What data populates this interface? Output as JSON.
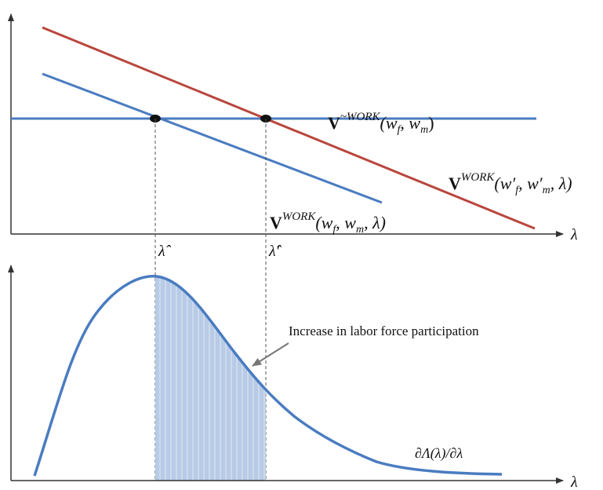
{
  "colors": {
    "blue": "#4a7cc0",
    "red": "#b9463d",
    "shade": "#b8cbe6",
    "axis": "#333333"
  },
  "top_panel": {
    "x_axis_label": "λ",
    "lines": [
      {
        "name": "V^~WORK(w_f, w_m)",
        "color": "blue"
      },
      {
        "name": "V^WORK(w_f, w_m, λ)",
        "color": "blue"
      },
      {
        "name": "V^WORK(w'_f, w'_m, λ)",
        "color": "red"
      }
    ],
    "tick_labels": {
      "lambda_hat": "λ̂",
      "lambda_hat_prime": "λ̂′"
    }
  },
  "bottom_panel": {
    "x_axis_label": "λ",
    "density_label": "∂Λ(λ)/∂λ",
    "annotation": "Increase in labor force participation"
  },
  "labels": {
    "v_nowork": {
      "V": "V",
      "sup": "~WORK",
      "args": "(w",
      "f": "f",
      "comma": ", w",
      "m": "m",
      "close": ")"
    },
    "v_work": {
      "V": "V",
      "sup": "WORK",
      "args": "(w",
      "f": "f",
      "comma": ", w",
      "m": "m",
      "tail": ", λ)"
    },
    "v_work_prime": {
      "V": "V",
      "sup": "WORK",
      "args": "(w′",
      "f": "f",
      "comma": ", w′",
      "m": "m",
      "tail": ", λ)"
    }
  }
}
